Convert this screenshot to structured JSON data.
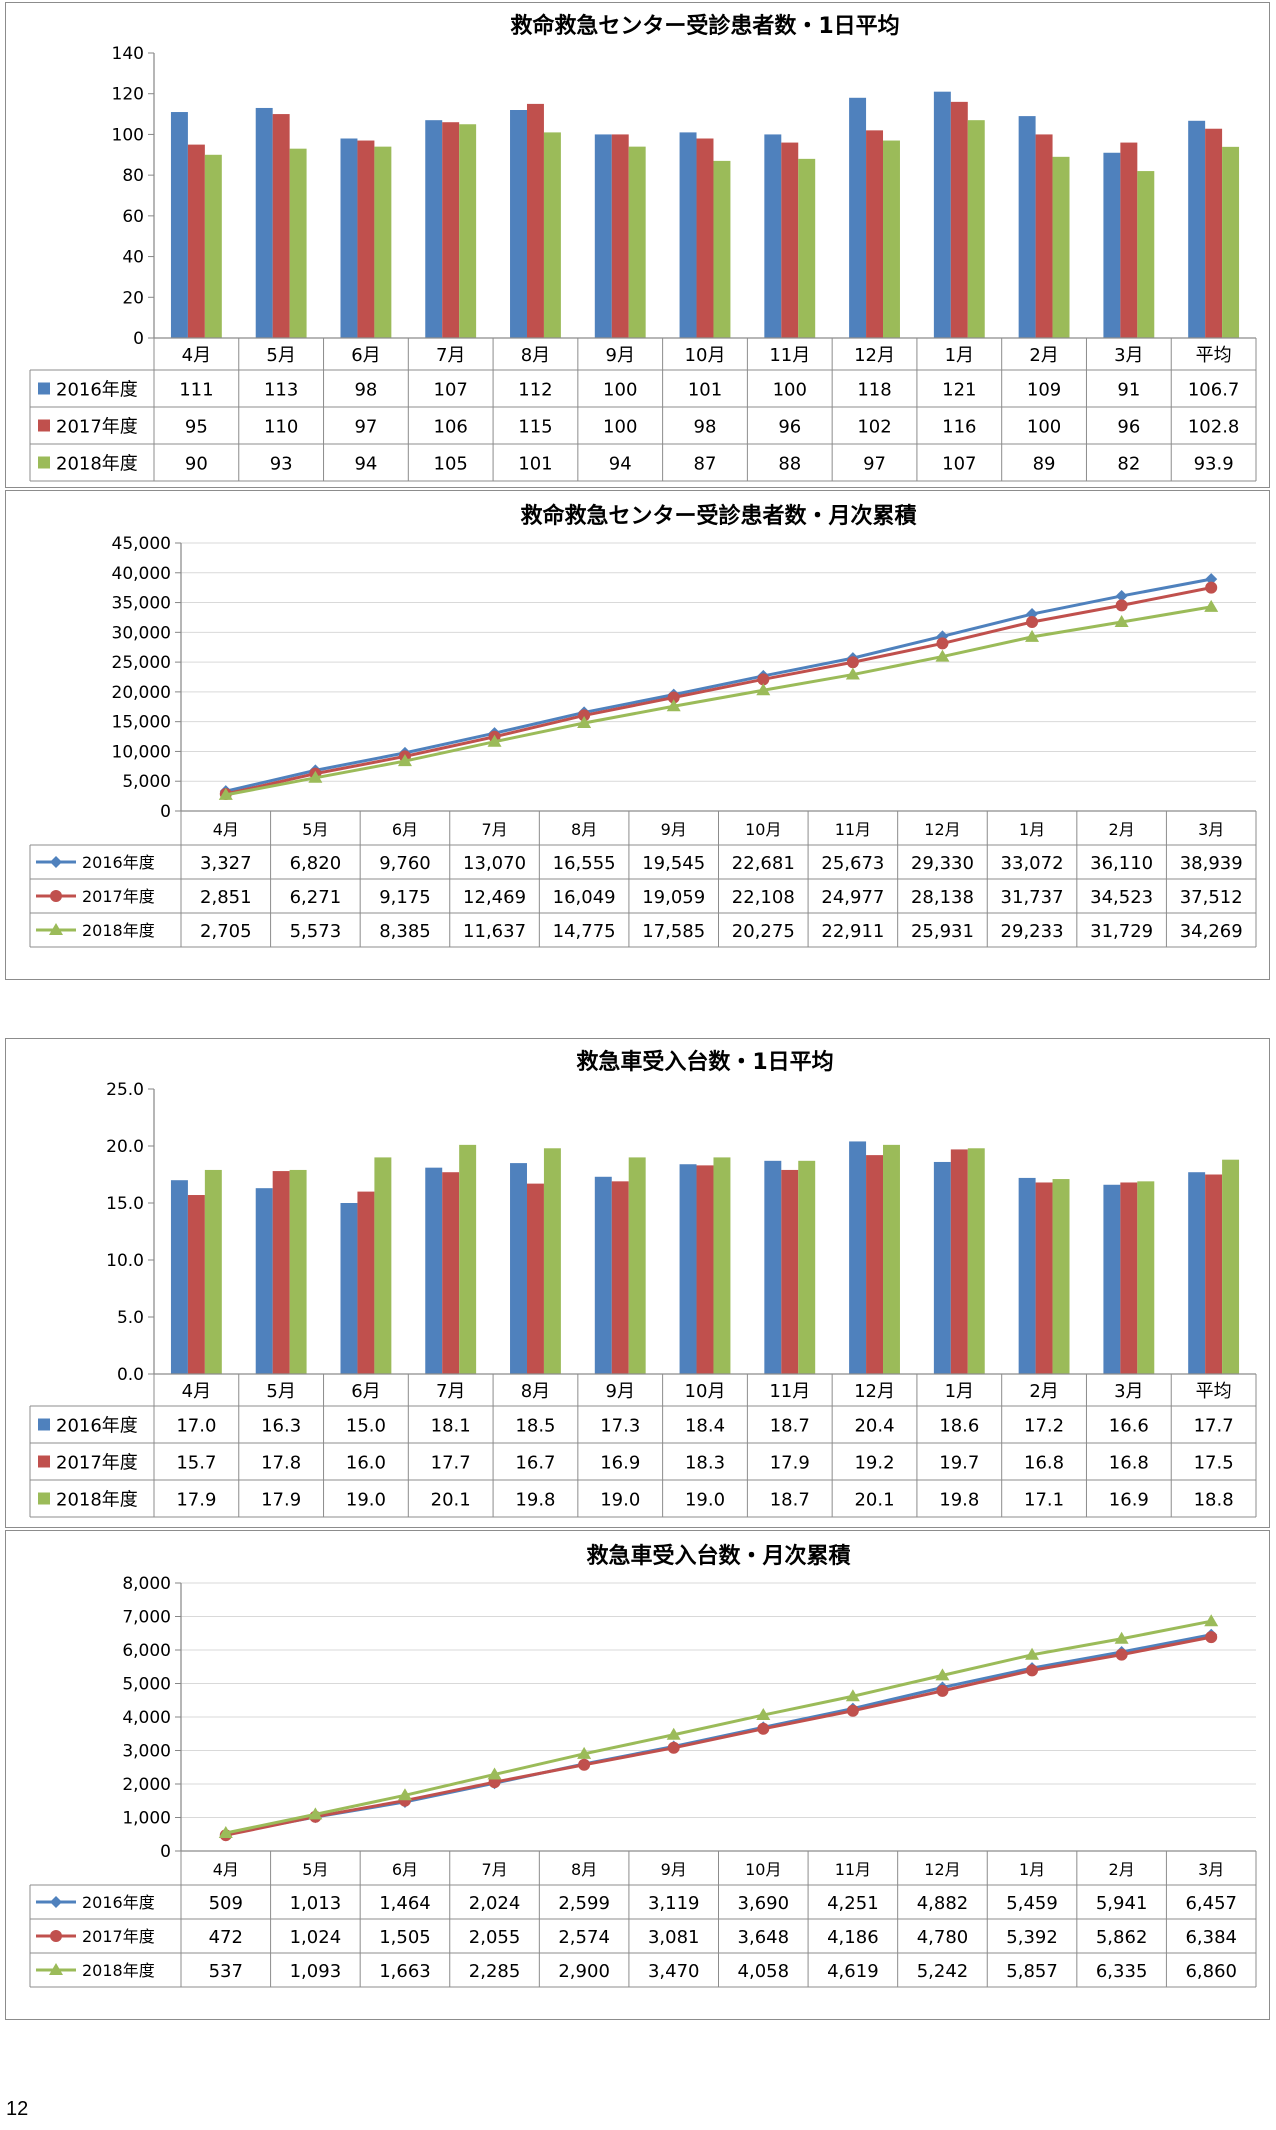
{
  "page_number": "12",
  "colors": {
    "s2016": "#4f81bd",
    "s2017": "#c0504d",
    "s2018": "#9bbb59",
    "grid": "#d9d9d9",
    "axis": "#868686"
  },
  "chart_data": [
    {
      "type": "bar",
      "title": "救命救急センター受診患者数・1日平均",
      "categories": [
        "4月",
        "5月",
        "6月",
        "7月",
        "8月",
        "9月",
        "10月",
        "11月",
        "12月",
        "1月",
        "2月",
        "3月",
        "平均"
      ],
      "ylim": [
        0,
        140
      ],
      "yticks": [
        "0",
        "20",
        "40",
        "60",
        "80",
        "100",
        "120",
        "140"
      ],
      "series": [
        {
          "name": "2016年度",
          "values": [
            111,
            113,
            98,
            107,
            112,
            100,
            101,
            100,
            118,
            121,
            109,
            91,
            106.7
          ],
          "labels": [
            "111",
            "113",
            "98",
            "107",
            "112",
            "100",
            "101",
            "100",
            "118",
            "121",
            "109",
            "91",
            "106.7"
          ]
        },
        {
          "name": "2017年度",
          "values": [
            95,
            110,
            97,
            106,
            115,
            100,
            98,
            96,
            102,
            116,
            100,
            96,
            102.8
          ],
          "labels": [
            "95",
            "110",
            "97",
            "106",
            "115",
            "100",
            "98",
            "96",
            "102",
            "116",
            "100",
            "96",
            "102.8"
          ]
        },
        {
          "name": "2018年度",
          "values": [
            90,
            93,
            94,
            105,
            101,
            94,
            87,
            88,
            97,
            107,
            89,
            82,
            93.9
          ],
          "labels": [
            "90",
            "93",
            "94",
            "105",
            "101",
            "94",
            "87",
            "88",
            "97",
            "107",
            "89",
            "82",
            "93.9"
          ]
        }
      ]
    },
    {
      "type": "line",
      "title": "救命救急センター受診患者数・月次累積",
      "categories": [
        "4月",
        "5月",
        "6月",
        "7月",
        "8月",
        "9月",
        "10月",
        "11月",
        "12月",
        "1月",
        "2月",
        "3月"
      ],
      "ylim": [
        0,
        45000
      ],
      "yticks": [
        "0",
        "5,000",
        "10,000",
        "15,000",
        "20,000",
        "25,000",
        "30,000",
        "35,000",
        "40,000",
        "45,000"
      ],
      "series": [
        {
          "name": "2016年度",
          "marker": "diamond",
          "values": [
            3327,
            6820,
            9760,
            13070,
            16555,
            19545,
            22681,
            25673,
            29330,
            33072,
            36110,
            38939
          ],
          "labels": [
            "3,327",
            "6,820",
            "9,760",
            "13,070",
            "16,555",
            "19,545",
            "22,681",
            "25,673",
            "29,330",
            "33,072",
            "36,110",
            "38,939"
          ]
        },
        {
          "name": "2017年度",
          "marker": "circle",
          "values": [
            2851,
            6271,
            9175,
            12469,
            16049,
            19059,
            22108,
            24977,
            28138,
            31737,
            34523,
            37512
          ],
          "labels": [
            "2,851",
            "6,271",
            "9,175",
            "12,469",
            "16,049",
            "19,059",
            "22,108",
            "24,977",
            "28,138",
            "31,737",
            "34,523",
            "37,512"
          ]
        },
        {
          "name": "2018年度",
          "marker": "triangle",
          "values": [
            2705,
            5573,
            8385,
            11637,
            14775,
            17585,
            20275,
            22911,
            25931,
            29233,
            31729,
            34269
          ],
          "labels": [
            "2,705",
            "5,573",
            "8,385",
            "11,637",
            "14,775",
            "17,585",
            "20,275",
            "22,911",
            "25,931",
            "29,233",
            "31,729",
            "34,269"
          ]
        }
      ]
    },
    {
      "type": "bar",
      "title": "救急車受入台数・1日平均",
      "categories": [
        "4月",
        "5月",
        "6月",
        "7月",
        "8月",
        "9月",
        "10月",
        "11月",
        "12月",
        "1月",
        "2月",
        "3月",
        "平均"
      ],
      "ylim": [
        0,
        25
      ],
      "yticks": [
        "0.0",
        "5.0",
        "10.0",
        "15.0",
        "20.0",
        "25.0"
      ],
      "series": [
        {
          "name": "2016年度",
          "values": [
            17.0,
            16.3,
            15.0,
            18.1,
            18.5,
            17.3,
            18.4,
            18.7,
            20.4,
            18.6,
            17.2,
            16.6,
            17.7
          ],
          "labels": [
            "17.0",
            "16.3",
            "15.0",
            "18.1",
            "18.5",
            "17.3",
            "18.4",
            "18.7",
            "20.4",
            "18.6",
            "17.2",
            "16.6",
            "17.7"
          ]
        },
        {
          "name": "2017年度",
          "values": [
            15.7,
            17.8,
            16.0,
            17.7,
            16.7,
            16.9,
            18.3,
            17.9,
            19.2,
            19.7,
            16.8,
            16.8,
            17.5
          ],
          "labels": [
            "15.7",
            "17.8",
            "16.0",
            "17.7",
            "16.7",
            "16.9",
            "18.3",
            "17.9",
            "19.2",
            "19.7",
            "16.8",
            "16.8",
            "17.5"
          ]
        },
        {
          "name": "2018年度",
          "values": [
            17.9,
            17.9,
            19.0,
            20.1,
            19.8,
            19.0,
            19.0,
            18.7,
            20.1,
            19.8,
            17.1,
            16.9,
            18.8
          ],
          "labels": [
            "17.9",
            "17.9",
            "19.0",
            "20.1",
            "19.8",
            "19.0",
            "19.0",
            "18.7",
            "20.1",
            "19.8",
            "17.1",
            "16.9",
            "18.8"
          ]
        }
      ]
    },
    {
      "type": "line",
      "title": "救急車受入台数・月次累積",
      "categories": [
        "4月",
        "5月",
        "6月",
        "7月",
        "8月",
        "9月",
        "10月",
        "11月",
        "12月",
        "1月",
        "2月",
        "3月"
      ],
      "ylim": [
        0,
        8000
      ],
      "yticks": [
        "0",
        "1,000",
        "2,000",
        "3,000",
        "4,000",
        "5,000",
        "6,000",
        "7,000",
        "8,000"
      ],
      "series": [
        {
          "name": "2016年度",
          "marker": "diamond",
          "values": [
            509,
            1013,
            1464,
            2024,
            2599,
            3119,
            3690,
            4251,
            4882,
            5459,
            5941,
            6457
          ],
          "labels": [
            "509",
            "1,013",
            "1,464",
            "2,024",
            "2,599",
            "3,119",
            "3,690",
            "4,251",
            "4,882",
            "5,459",
            "5,941",
            "6,457"
          ]
        },
        {
          "name": "2017年度",
          "marker": "circle",
          "values": [
            472,
            1024,
            1505,
            2055,
            2574,
            3081,
            3648,
            4186,
            4780,
            5392,
            5862,
            6384
          ],
          "labels": [
            "472",
            "1,024",
            "1,505",
            "2,055",
            "2,574",
            "3,081",
            "3,648",
            "4,186",
            "4,780",
            "5,392",
            "5,862",
            "6,384"
          ]
        },
        {
          "name": "2018年度",
          "marker": "triangle",
          "values": [
            537,
            1093,
            1663,
            2285,
            2900,
            3470,
            4058,
            4619,
            5242,
            5857,
            6335,
            6860
          ],
          "labels": [
            "537",
            "1,093",
            "1,663",
            "2,285",
            "2,900",
            "3,470",
            "4,058",
            "4,619",
            "5,242",
            "5,857",
            "6,335",
            "6,860"
          ]
        }
      ]
    }
  ]
}
